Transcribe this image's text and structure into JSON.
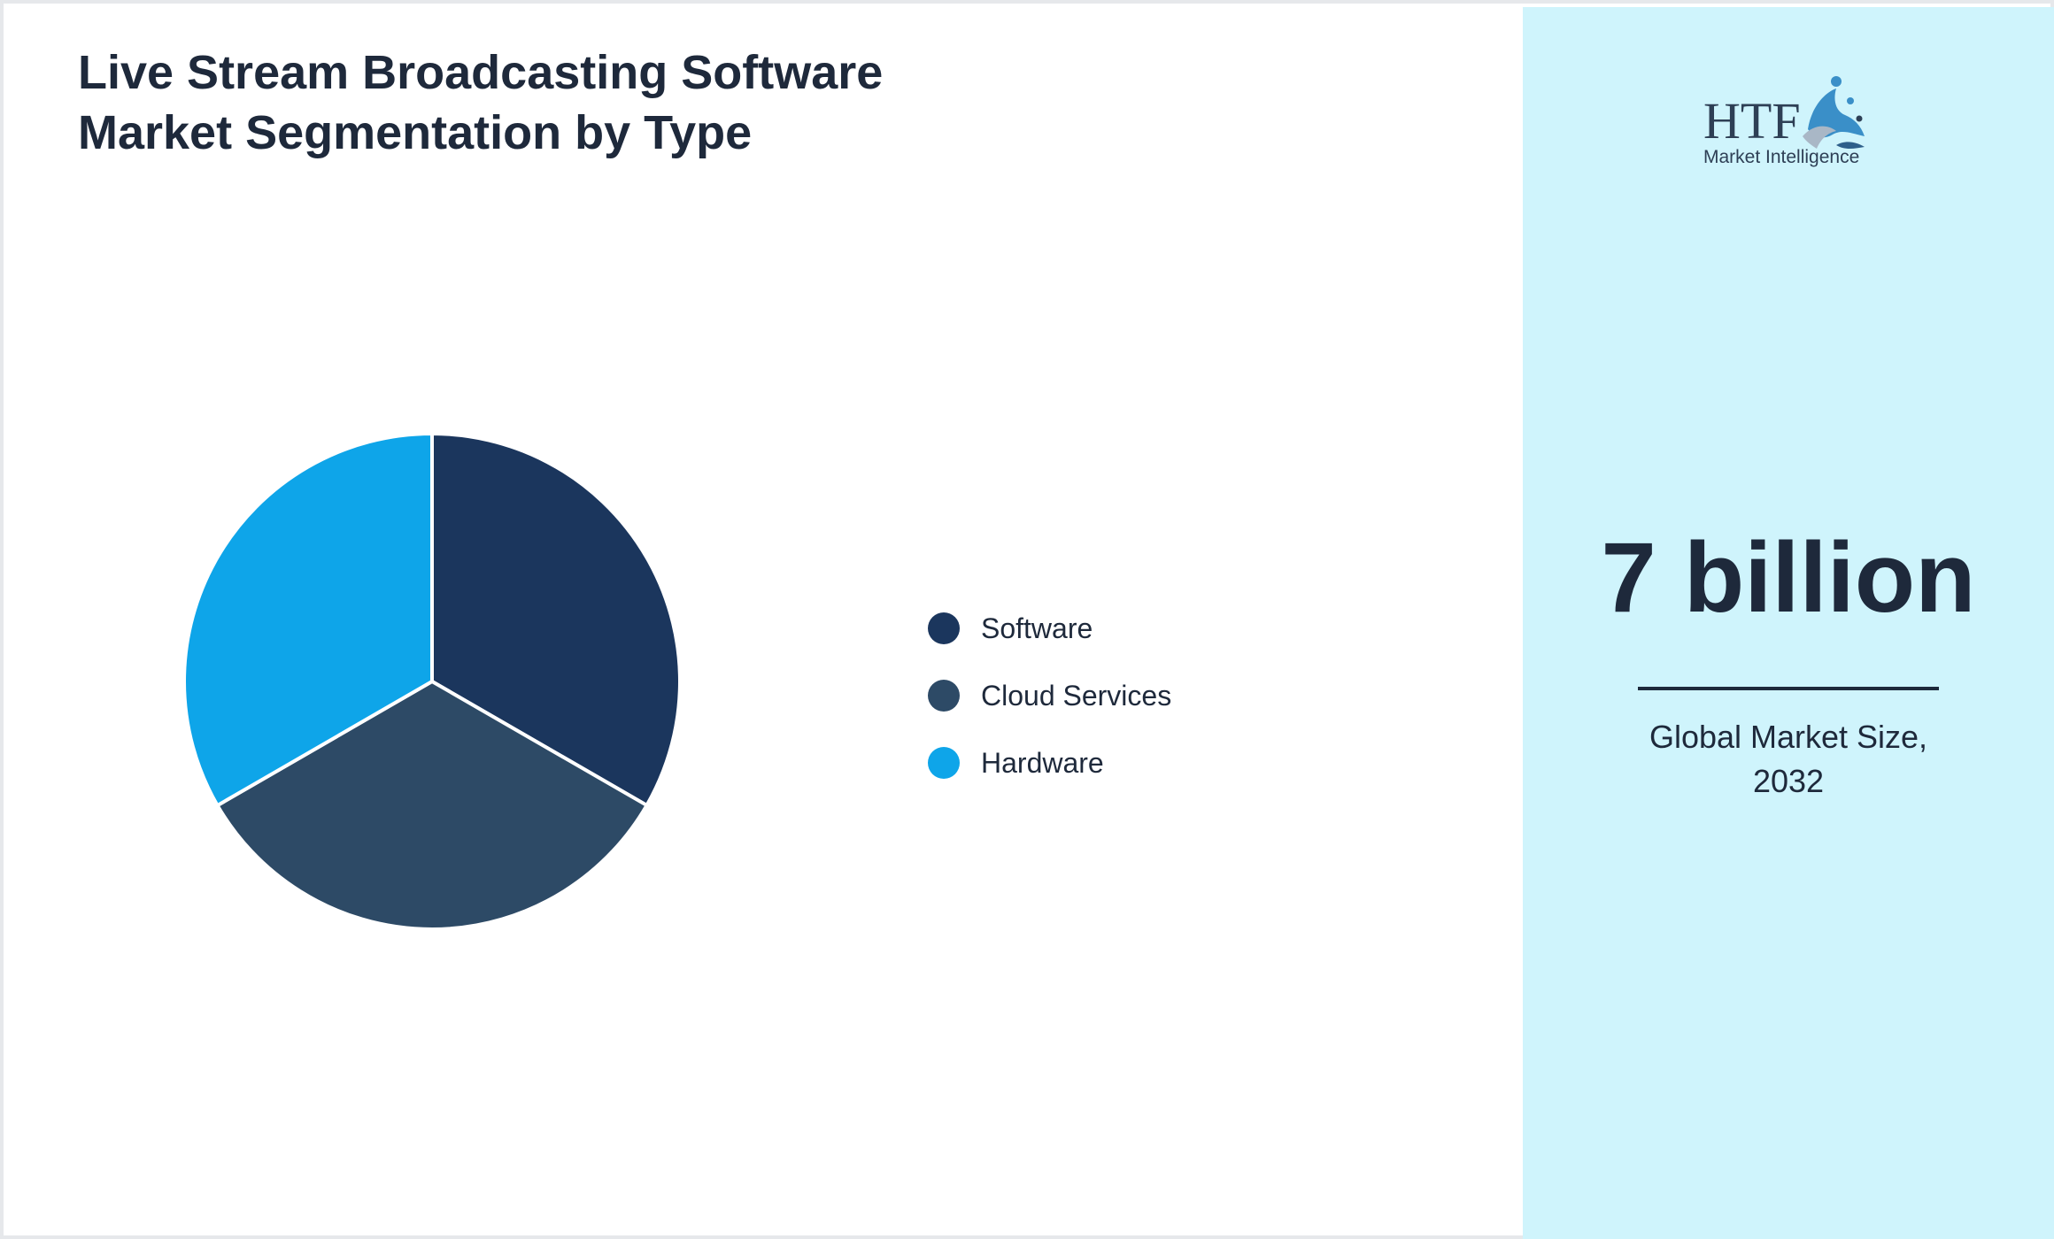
{
  "title": "Live Stream Broadcasting Software Market Segmentation by Type",
  "chart_data": {
    "type": "pie",
    "title": "Live Stream Broadcasting Software Market Segmentation by Type",
    "categories": [
      "Software",
      "Cloud Services",
      "Hardware"
    ],
    "values": [
      33.33,
      33.33,
      33.34
    ],
    "colors": [
      "#1b365d",
      "#2d4a66",
      "#0ea5e9"
    ],
    "legend_position": "right"
  },
  "logo": {
    "brand": "HTF",
    "tagline": "Market Intelligence"
  },
  "highlight": {
    "value": "7 billion",
    "caption": "Global Market Size, 2032"
  }
}
